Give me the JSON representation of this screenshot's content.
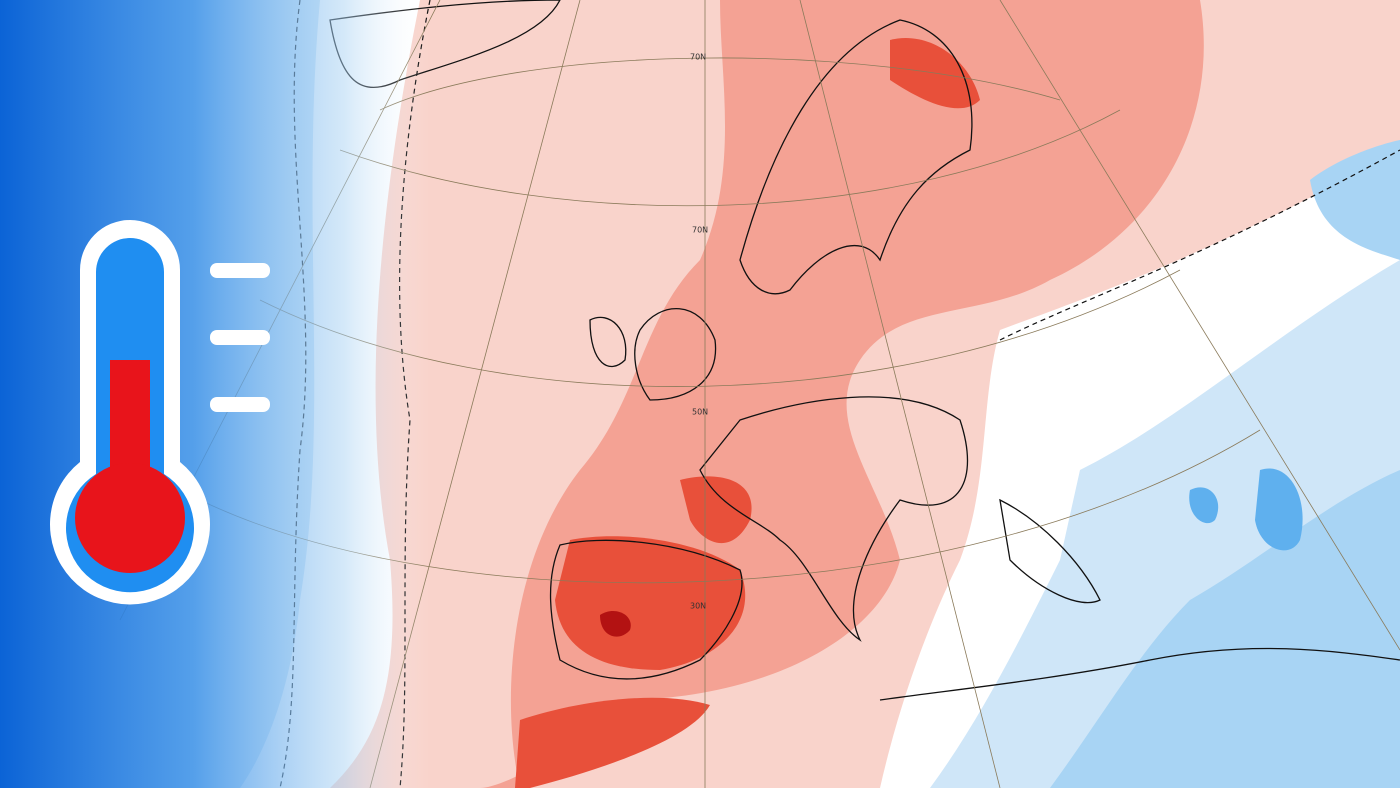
{
  "map": {
    "latitude_labels": [
      "70N",
      "70N",
      "50N",
      "30N"
    ]
  }
}
